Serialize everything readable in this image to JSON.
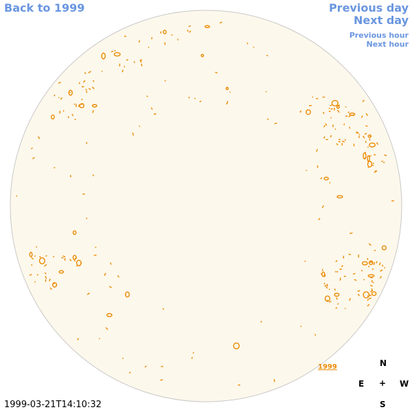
{
  "nav": {
    "back": "Back to 1999",
    "previous_day": "Previous day",
    "next_day": "Next day",
    "previous_hour": "Previous hour",
    "next_hour": "Next hour"
  },
  "image": {
    "label": "1999",
    "timestamp": "1999-03-21T14:10:32"
  },
  "compass": {
    "north": "N",
    "east": "E",
    "center": "+",
    "west": "W",
    "south": "S"
  }
}
